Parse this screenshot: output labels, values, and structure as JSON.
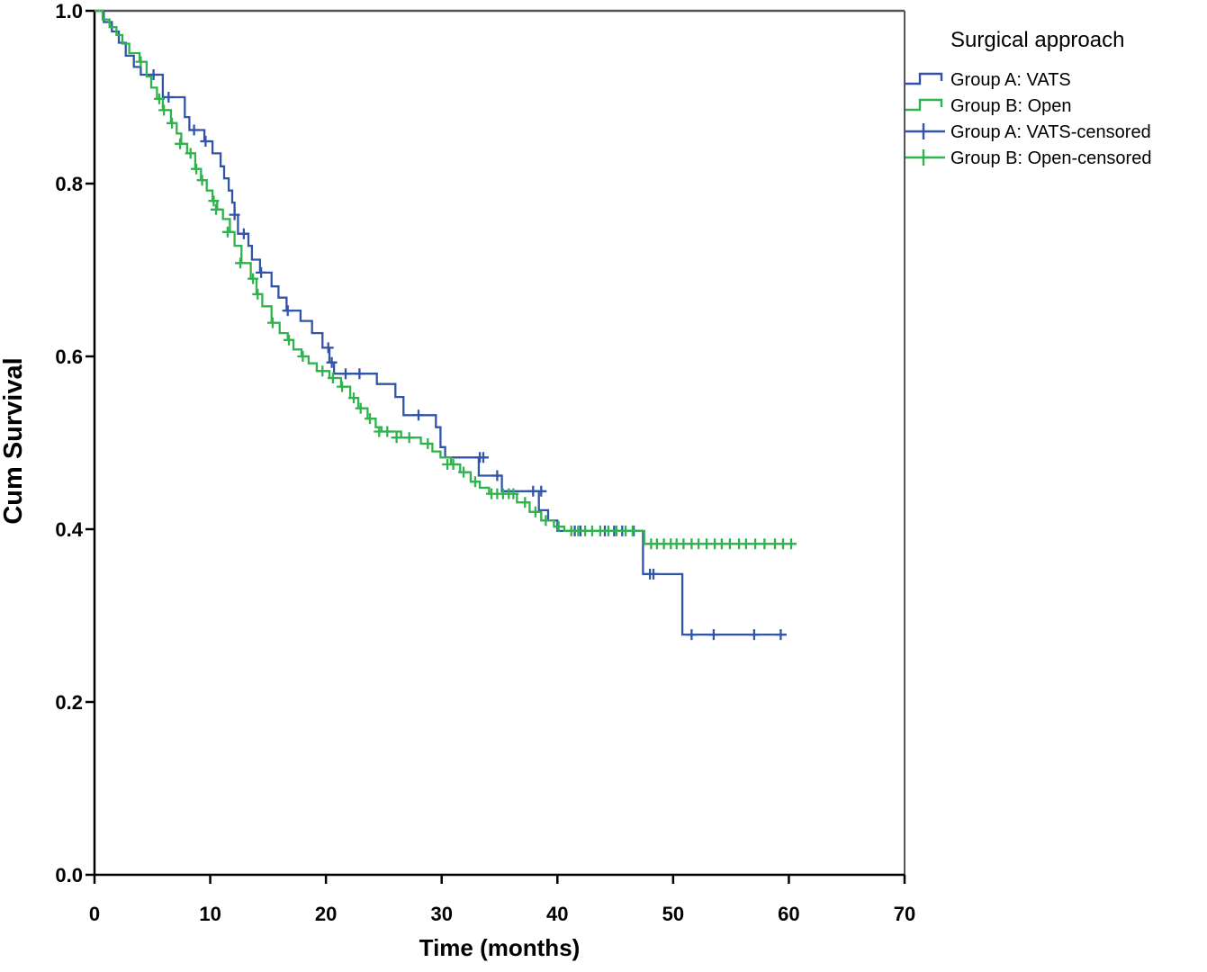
{
  "figure": {
    "x_axis_title": "Time (months)",
    "y_axis_title": "Cum Survival"
  },
  "legend": {
    "title": "Surgical approach",
    "entries": [
      {
        "label": "Group A: VATS",
        "type": "step-line",
        "color": "#3254a8"
      },
      {
        "label": "Group B: Open",
        "type": "step-line",
        "color": "#2fb34c"
      },
      {
        "label": "Group A: VATS-censored",
        "type": "censor-plus",
        "color": "#3254a8"
      },
      {
        "label": "Group B: Open-censored",
        "type": "censor-plus",
        "color": "#2fb34c"
      }
    ]
  },
  "chart_data": {
    "type": "line",
    "subtype": "kaplan-meier-step",
    "title": "",
    "xlabel": "Time (months)",
    "ylabel": "Cum Survival",
    "xlim": [
      0,
      70
    ],
    "ylim": [
      0,
      1
    ],
    "x_ticks": [
      "0",
      "10",
      "20",
      "30",
      "40",
      "50",
      "60",
      "70"
    ],
    "y_ticks": [
      "0.0",
      "0.2",
      "0.4",
      "0.6",
      "0.8",
      "1.0"
    ],
    "grid": false,
    "legend_position": "top-right-outside",
    "series": [
      {
        "name": "Group A: VATS",
        "color": "#3254a8",
        "end_t": 59.8,
        "steps": [
          [
            0,
            1.0
          ],
          [
            0.8,
            0.987
          ],
          [
            1.5,
            0.976
          ],
          [
            2.1,
            0.963
          ],
          [
            2.7,
            0.948
          ],
          [
            3.4,
            0.935
          ],
          [
            4.0,
            0.926
          ],
          [
            5.9,
            0.9
          ],
          [
            7.8,
            0.877
          ],
          [
            8.2,
            0.862
          ],
          [
            9.5,
            0.849
          ],
          [
            10.2,
            0.835
          ],
          [
            10.9,
            0.82
          ],
          [
            11.2,
            0.806
          ],
          [
            11.6,
            0.792
          ],
          [
            11.9,
            0.778
          ],
          [
            12.1,
            0.764
          ],
          [
            12.4,
            0.742
          ],
          [
            13.3,
            0.728
          ],
          [
            13.6,
            0.712
          ],
          [
            14.3,
            0.697
          ],
          [
            15.3,
            0.681
          ],
          [
            15.9,
            0.668
          ],
          [
            16.6,
            0.653
          ],
          [
            17.8,
            0.641
          ],
          [
            18.8,
            0.627
          ],
          [
            19.7,
            0.61
          ],
          [
            20.3,
            0.593
          ],
          [
            20.7,
            0.58
          ],
          [
            24.4,
            0.568
          ],
          [
            26.0,
            0.553
          ],
          [
            26.7,
            0.532
          ],
          [
            29.5,
            0.518
          ],
          [
            29.9,
            0.495
          ],
          [
            30.3,
            0.483
          ],
          [
            33.2,
            0.462
          ],
          [
            35.2,
            0.444
          ],
          [
            38.4,
            0.422
          ],
          [
            39.2,
            0.41
          ],
          [
            40.0,
            0.398
          ],
          [
            47.4,
            0.348
          ],
          [
            50.8,
            0.278
          ]
        ],
        "censored": [
          [
            5.1,
            0.926
          ],
          [
            6.4,
            0.9
          ],
          [
            8.6,
            0.862
          ],
          [
            9.6,
            0.849
          ],
          [
            12.1,
            0.764
          ],
          [
            12.9,
            0.742
          ],
          [
            14.4,
            0.697
          ],
          [
            16.7,
            0.653
          ],
          [
            20.2,
            0.61
          ],
          [
            20.5,
            0.593
          ],
          [
            21.7,
            0.58
          ],
          [
            22.9,
            0.58
          ],
          [
            28.0,
            0.532
          ],
          [
            33.3,
            0.483
          ],
          [
            33.6,
            0.483
          ],
          [
            34.8,
            0.462
          ],
          [
            37.9,
            0.444
          ],
          [
            38.6,
            0.444
          ],
          [
            41.5,
            0.398
          ],
          [
            42.0,
            0.398
          ],
          [
            44.1,
            0.398
          ],
          [
            44.9,
            0.398
          ],
          [
            45.6,
            0.398
          ],
          [
            46.6,
            0.398
          ],
          [
            48.0,
            0.348
          ],
          [
            48.3,
            0.348
          ],
          [
            51.6,
            0.278
          ],
          [
            53.5,
            0.278
          ],
          [
            57.0,
            0.278
          ],
          [
            59.3,
            0.278
          ]
        ]
      },
      {
        "name": "Group B: Open",
        "color": "#2fb34c",
        "end_t": 60.6,
        "steps": [
          [
            0,
            1.0
          ],
          [
            0.7,
            0.99
          ],
          [
            1.3,
            0.981
          ],
          [
            1.9,
            0.972
          ],
          [
            2.4,
            0.962
          ],
          [
            3.0,
            0.951
          ],
          [
            3.9,
            0.941
          ],
          [
            4.5,
            0.924
          ],
          [
            4.9,
            0.911
          ],
          [
            5.4,
            0.898
          ],
          [
            5.9,
            0.885
          ],
          [
            6.6,
            0.87
          ],
          [
            7.1,
            0.858
          ],
          [
            7.5,
            0.846
          ],
          [
            8.0,
            0.835
          ],
          [
            8.7,
            0.817
          ],
          [
            9.2,
            0.804
          ],
          [
            9.7,
            0.792
          ],
          [
            10.2,
            0.78
          ],
          [
            10.6,
            0.77
          ],
          [
            11.1,
            0.759
          ],
          [
            11.7,
            0.744
          ],
          [
            12.1,
            0.728
          ],
          [
            12.7,
            0.708
          ],
          [
            13.5,
            0.69
          ],
          [
            14.0,
            0.672
          ],
          [
            14.5,
            0.658
          ],
          [
            15.3,
            0.639
          ],
          [
            16.0,
            0.627
          ],
          [
            16.7,
            0.619
          ],
          [
            17.2,
            0.608
          ],
          [
            17.9,
            0.6
          ],
          [
            18.5,
            0.592
          ],
          [
            19.2,
            0.583
          ],
          [
            20.3,
            0.575
          ],
          [
            21.3,
            0.565
          ],
          [
            22.1,
            0.552
          ],
          [
            22.8,
            0.54
          ],
          [
            23.6,
            0.528
          ],
          [
            24.3,
            0.518
          ],
          [
            24.8,
            0.513
          ],
          [
            26.5,
            0.506
          ],
          [
            28.2,
            0.499
          ],
          [
            29.2,
            0.49
          ],
          [
            29.9,
            0.483
          ],
          [
            30.8,
            0.475
          ],
          [
            31.6,
            0.466
          ],
          [
            32.5,
            0.455
          ],
          [
            33.3,
            0.448
          ],
          [
            34.1,
            0.441
          ],
          [
            36.5,
            0.431
          ],
          [
            37.6,
            0.42
          ],
          [
            38.6,
            0.41
          ],
          [
            39.7,
            0.403
          ],
          [
            40.6,
            0.398
          ],
          [
            47.5,
            0.383
          ]
        ],
        "censored": [
          [
            4.0,
            0.941
          ],
          [
            5.6,
            0.898
          ],
          [
            6.0,
            0.885
          ],
          [
            6.7,
            0.87
          ],
          [
            7.4,
            0.846
          ],
          [
            8.3,
            0.835
          ],
          [
            8.8,
            0.817
          ],
          [
            9.3,
            0.804
          ],
          [
            10.3,
            0.78
          ],
          [
            10.5,
            0.77
          ],
          [
            11.5,
            0.744
          ],
          [
            12.6,
            0.708
          ],
          [
            13.7,
            0.69
          ],
          [
            14.1,
            0.672
          ],
          [
            15.4,
            0.639
          ],
          [
            16.8,
            0.619
          ],
          [
            18.0,
            0.6
          ],
          [
            19.7,
            0.583
          ],
          [
            20.6,
            0.575
          ],
          [
            21.4,
            0.565
          ],
          [
            22.4,
            0.552
          ],
          [
            23.0,
            0.54
          ],
          [
            23.8,
            0.528
          ],
          [
            24.6,
            0.513
          ],
          [
            25.3,
            0.513
          ],
          [
            26.1,
            0.506
          ],
          [
            27.2,
            0.506
          ],
          [
            28.8,
            0.499
          ],
          [
            30.5,
            0.475
          ],
          [
            31.0,
            0.475
          ],
          [
            31.9,
            0.466
          ],
          [
            32.9,
            0.455
          ],
          [
            34.3,
            0.441
          ],
          [
            34.8,
            0.441
          ],
          [
            35.3,
            0.441
          ],
          [
            35.8,
            0.441
          ],
          [
            36.2,
            0.441
          ],
          [
            37.2,
            0.431
          ],
          [
            38.1,
            0.42
          ],
          [
            39.0,
            0.41
          ],
          [
            40.1,
            0.403
          ],
          [
            41.2,
            0.398
          ],
          [
            41.8,
            0.398
          ],
          [
            42.4,
            0.398
          ],
          [
            43.0,
            0.398
          ],
          [
            43.7,
            0.398
          ],
          [
            44.4,
            0.398
          ],
          [
            45.1,
            0.398
          ],
          [
            45.9,
            0.398
          ],
          [
            46.5,
            0.398
          ],
          [
            48.1,
            0.383
          ],
          [
            48.6,
            0.383
          ],
          [
            49.2,
            0.383
          ],
          [
            49.8,
            0.383
          ],
          [
            50.3,
            0.383
          ],
          [
            50.9,
            0.383
          ],
          [
            51.6,
            0.383
          ],
          [
            52.2,
            0.383
          ],
          [
            52.9,
            0.383
          ],
          [
            53.6,
            0.383
          ],
          [
            54.2,
            0.383
          ],
          [
            54.9,
            0.383
          ],
          [
            55.7,
            0.383
          ],
          [
            56.3,
            0.383
          ],
          [
            57.1,
            0.383
          ],
          [
            57.9,
            0.383
          ],
          [
            58.8,
            0.383
          ],
          [
            59.5,
            0.383
          ],
          [
            60.2,
            0.383
          ]
        ]
      }
    ]
  }
}
